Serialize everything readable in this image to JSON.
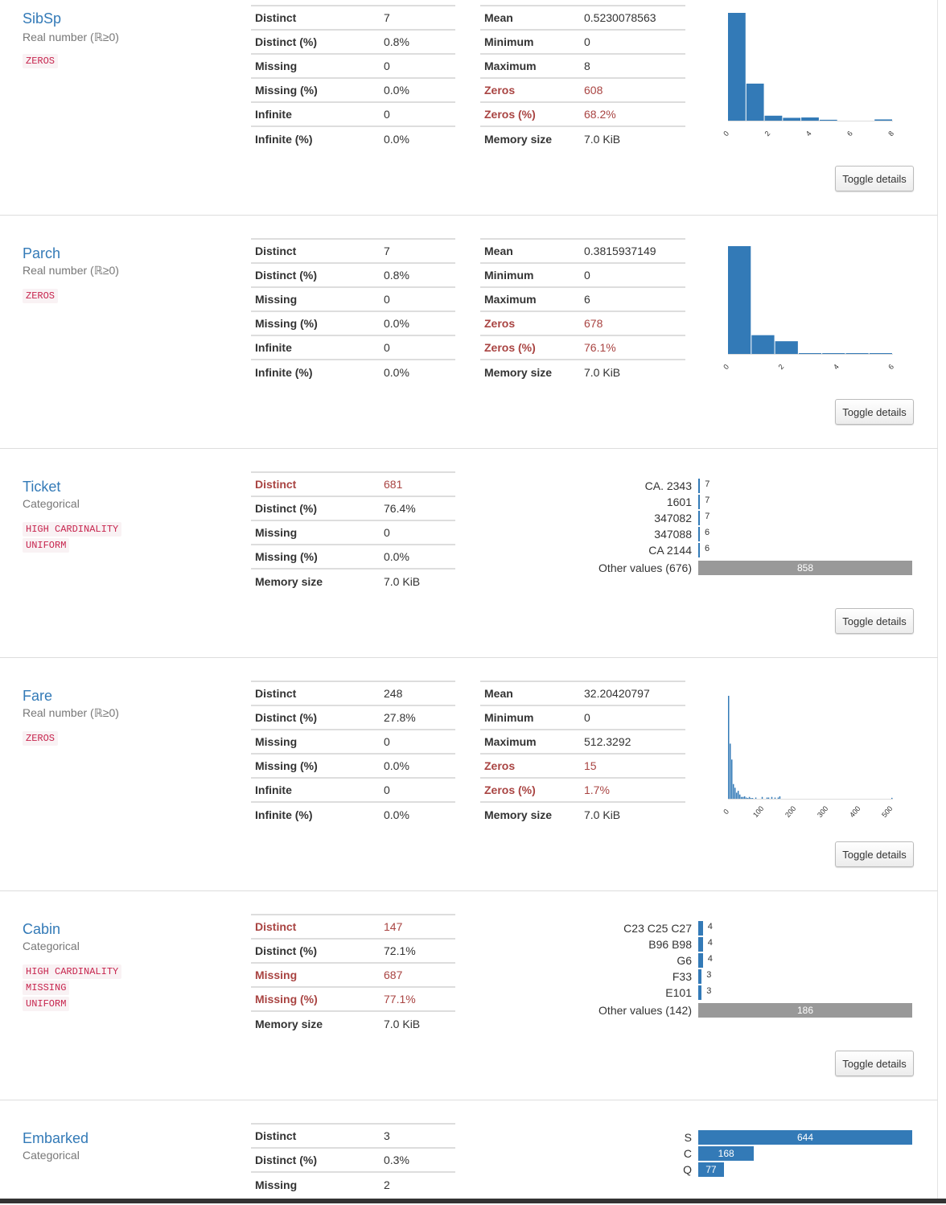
{
  "toggle_label": "Toggle details",
  "colors": {
    "accent": "#337ab7",
    "alert": "#a94442",
    "tag_text": "#c7254e",
    "other_bar": "#999999"
  },
  "variables": [
    {
      "name": "SibSp",
      "type": "Real number (ℝ≥0)",
      "tags": [
        "ZEROS"
      ],
      "table1": [
        {
          "label": "Distinct",
          "value": "7"
        },
        {
          "label": "Distinct (%)",
          "value": "0.8%"
        },
        {
          "label": "Missing",
          "value": "0"
        },
        {
          "label": "Missing (%)",
          "value": "0.0%"
        },
        {
          "label": "Infinite",
          "value": "0"
        },
        {
          "label": "Infinite (%)",
          "value": "0.0%"
        }
      ],
      "table2": [
        {
          "label": "Mean",
          "value": "0.5230078563"
        },
        {
          "label": "Minimum",
          "value": "0"
        },
        {
          "label": "Maximum",
          "value": "8"
        },
        {
          "label": "Zeros",
          "value": "608",
          "alert": true
        },
        {
          "label": "Zeros (%)",
          "value": "68.2%",
          "alert": true
        },
        {
          "label": "Memory size",
          "value": "7.0 KiB"
        }
      ]
    },
    {
      "name": "Parch",
      "type": "Real number (ℝ≥0)",
      "tags": [
        "ZEROS"
      ],
      "table1": [
        {
          "label": "Distinct",
          "value": "7"
        },
        {
          "label": "Distinct (%)",
          "value": "0.8%"
        },
        {
          "label": "Missing",
          "value": "0"
        },
        {
          "label": "Missing (%)",
          "value": "0.0%"
        },
        {
          "label": "Infinite",
          "value": "0"
        },
        {
          "label": "Infinite (%)",
          "value": "0.0%"
        }
      ],
      "table2": [
        {
          "label": "Mean",
          "value": "0.3815937149"
        },
        {
          "label": "Minimum",
          "value": "0"
        },
        {
          "label": "Maximum",
          "value": "6"
        },
        {
          "label": "Zeros",
          "value": "678",
          "alert": true
        },
        {
          "label": "Zeros (%)",
          "value": "76.1%",
          "alert": true
        },
        {
          "label": "Memory size",
          "value": "7.0 KiB"
        }
      ]
    },
    {
      "name": "Ticket",
      "type": "Categorical",
      "tags": [
        "HIGH CARDINALITY",
        "UNIFORM"
      ],
      "table1": [
        {
          "label": "Distinct",
          "value": "681",
          "alert": true
        },
        {
          "label": "Distinct (%)",
          "value": "76.4%"
        },
        {
          "label": "Missing",
          "value": "0"
        },
        {
          "label": "Missing (%)",
          "value": "0.0%"
        },
        {
          "label": "Memory size",
          "value": "7.0 KiB"
        }
      ]
    },
    {
      "name": "Fare",
      "type": "Real number (ℝ≥0)",
      "tags": [
        "ZEROS"
      ],
      "table1": [
        {
          "label": "Distinct",
          "value": "248"
        },
        {
          "label": "Distinct (%)",
          "value": "27.8%"
        },
        {
          "label": "Missing",
          "value": "0"
        },
        {
          "label": "Missing (%)",
          "value": "0.0%"
        },
        {
          "label": "Infinite",
          "value": "0"
        },
        {
          "label": "Infinite (%)",
          "value": "0.0%"
        }
      ],
      "table2": [
        {
          "label": "Mean",
          "value": "32.20420797"
        },
        {
          "label": "Minimum",
          "value": "0"
        },
        {
          "label": "Maximum",
          "value": "512.3292"
        },
        {
          "label": "Zeros",
          "value": "15",
          "alert": true
        },
        {
          "label": "Zeros (%)",
          "value": "1.7%",
          "alert": true
        },
        {
          "label": "Memory size",
          "value": "7.0 KiB"
        }
      ]
    },
    {
      "name": "Cabin",
      "type": "Categorical",
      "tags": [
        "HIGH CARDINALITY",
        "MISSING",
        "UNIFORM"
      ],
      "table1": [
        {
          "label": "Distinct",
          "value": "147",
          "alert": true
        },
        {
          "label": "Distinct (%)",
          "value": "72.1%"
        },
        {
          "label": "Missing",
          "value": "687",
          "alert": true
        },
        {
          "label": "Missing (%)",
          "value": "77.1%",
          "alert": true
        },
        {
          "label": "Memory size",
          "value": "7.0 KiB"
        }
      ]
    },
    {
      "name": "Embarked",
      "type": "Categorical",
      "tags": [],
      "table1": [
        {
          "label": "Distinct",
          "value": "3"
        },
        {
          "label": "Distinct (%)",
          "value": "0.3%"
        },
        {
          "label": "Missing",
          "value": "2"
        }
      ]
    }
  ],
  "chart_data": [
    {
      "variable": "SibSp",
      "type": "bar",
      "bins": [
        0,
        1,
        2,
        3,
        4,
        5,
        6,
        7,
        8
      ],
      "values": [
        608,
        209,
        28,
        16,
        18,
        5,
        0,
        0,
        7
      ],
      "xlim": [
        0,
        8
      ],
      "xticks": [
        "0",
        "2",
        "4",
        "6",
        "8"
      ]
    },
    {
      "variable": "Parch",
      "type": "bar",
      "bins": [
        0,
        1,
        2,
        3,
        4,
        5,
        6
      ],
      "values": [
        678,
        118,
        80,
        5,
        4,
        5,
        1
      ],
      "xlim": [
        0,
        6
      ],
      "xticks": [
        "0",
        "2",
        "4",
        "6"
      ]
    },
    {
      "variable": "Ticket",
      "type": "bar",
      "orientation": "horizontal",
      "categories": [
        "CA. 2343",
        "1601",
        "347082",
        "347088",
        "CA 2144",
        "Other values (676)"
      ],
      "values": [
        7,
        7,
        7,
        6,
        6,
        858
      ]
    },
    {
      "variable": "Fare",
      "type": "bar",
      "values": [
        336,
        180,
        128,
        48,
        36,
        20,
        26,
        14,
        6,
        6,
        8,
        4,
        2,
        6,
        2,
        2,
        0,
        4,
        0,
        0,
        0,
        6,
        0,
        0,
        4,
        4,
        0,
        6,
        0,
        4,
        0,
        4,
        8,
        0,
        0,
        0,
        0,
        0,
        0,
        0,
        0,
        0,
        0,
        0,
        0,
        0,
        0,
        0,
        0,
        0,
        0,
        0,
        0,
        0,
        0,
        0,
        0,
        0,
        0,
        0,
        0,
        0,
        0,
        0,
        0,
        0,
        0,
        0,
        0,
        0,
        0,
        0,
        0,
        0,
        0,
        0,
        0,
        0,
        0,
        0,
        0,
        0,
        0,
        0,
        0,
        0,
        0,
        0,
        0,
        0,
        0,
        0,
        0,
        0,
        0,
        0,
        0,
        0,
        0,
        0,
        0,
        0,
        3
      ],
      "xlim": [
        0,
        512.3292
      ],
      "xticks": [
        "0",
        "100",
        "200",
        "300",
        "400",
        "500"
      ]
    },
    {
      "variable": "Cabin",
      "type": "bar",
      "orientation": "horizontal",
      "categories": [
        "C23 C25 C27",
        "B96 B98",
        "G6",
        "F33",
        "E101",
        "Other values (142)"
      ],
      "values": [
        4,
        4,
        4,
        3,
        3,
        186
      ]
    },
    {
      "variable": "Embarked",
      "type": "bar",
      "orientation": "horizontal",
      "categories": [
        "S",
        "C",
        "Q"
      ],
      "values": [
        644,
        168,
        77
      ]
    }
  ]
}
